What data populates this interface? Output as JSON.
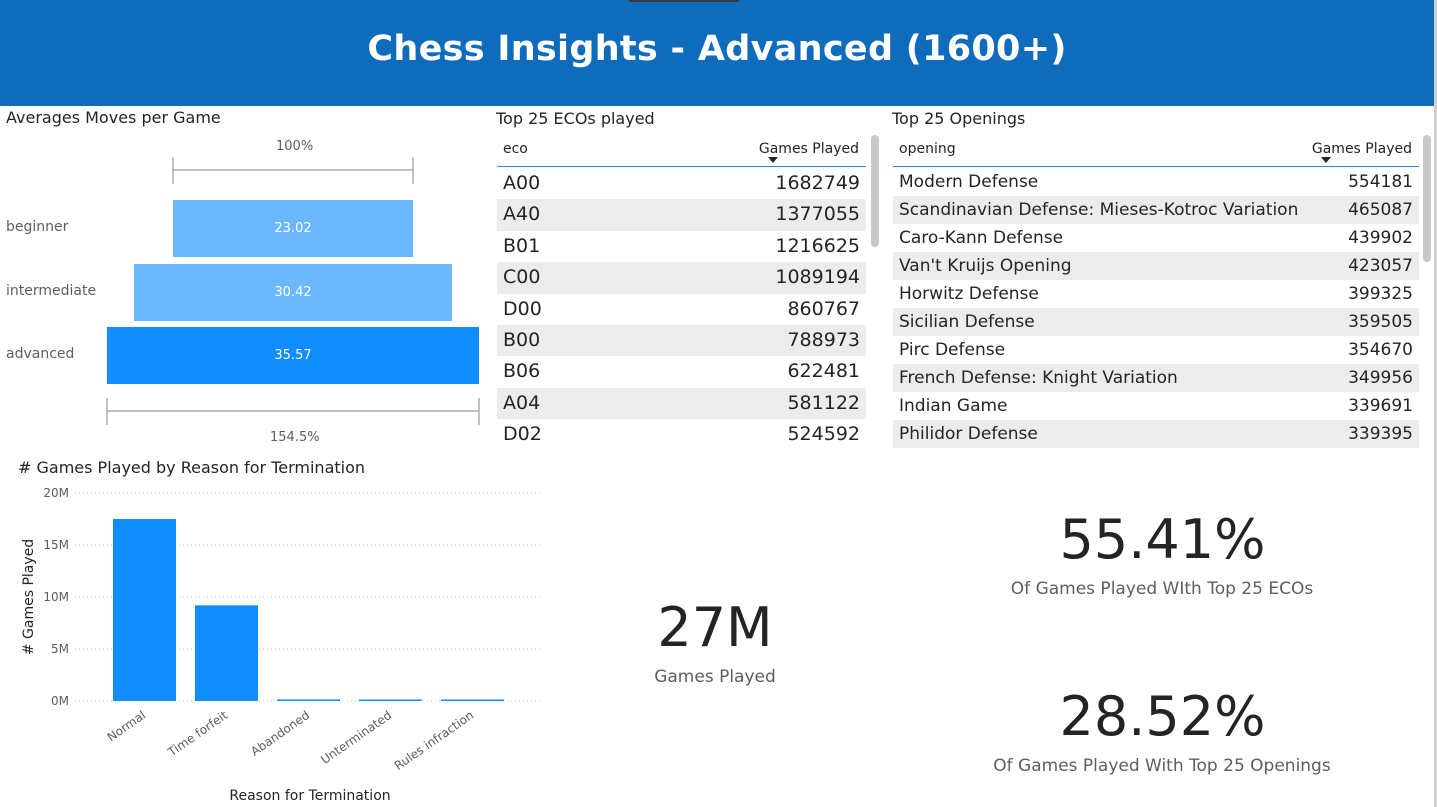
{
  "header": {
    "title": "Chess Insights - Advanced (1600+)"
  },
  "funnel": {
    "title": "Averages Moves per Game",
    "top_pct": "100%",
    "bottom_pct": "154.5%",
    "stages": [
      {
        "label": "beginner",
        "value": "23.02"
      },
      {
        "label": "intermediate",
        "value": "30.42"
      },
      {
        "label": "advanced",
        "value": "35.57"
      }
    ]
  },
  "eco_table": {
    "title": "Top 25 ECOs played",
    "col1": "eco",
    "col2": "Games Played",
    "rows": [
      {
        "eco": "A00",
        "games": "1682749"
      },
      {
        "eco": "A40",
        "games": "1377055"
      },
      {
        "eco": "B01",
        "games": "1216625"
      },
      {
        "eco": "C00",
        "games": "1089194"
      },
      {
        "eco": "D00",
        "games": "860767"
      },
      {
        "eco": "B00",
        "games": "788973"
      },
      {
        "eco": "B06",
        "games": "622481"
      },
      {
        "eco": "A04",
        "games": "581122"
      },
      {
        "eco": "D02",
        "games": "524592"
      }
    ]
  },
  "openings_table": {
    "title": "Top 25 Openings",
    "col1": "opening",
    "col2": "Games Played",
    "rows": [
      {
        "opening": "Modern Defense",
        "games": "554181"
      },
      {
        "opening": "Scandinavian Defense: Mieses-Kotroc Variation",
        "games": "465087"
      },
      {
        "opening": "Caro-Kann Defense",
        "games": "439902"
      },
      {
        "opening": "Van't Kruijs Opening",
        "games": "423057"
      },
      {
        "opening": "Horwitz Defense",
        "games": "399325"
      },
      {
        "opening": "Sicilian Defense",
        "games": "359505"
      },
      {
        "opening": "Pirc Defense",
        "games": "354670"
      },
      {
        "opening": "French Defense: Knight Variation",
        "games": "349956"
      },
      {
        "opening": "Indian Game",
        "games": "339691"
      },
      {
        "opening": "Philidor Defense",
        "games": "339395"
      }
    ]
  },
  "chart_data": {
    "type": "bar",
    "title": "# Games Played by Reason for Termination",
    "xlabel": "Reason for Termination",
    "ylabel": "# Games Played",
    "categories": [
      "Normal",
      "Time forfeit",
      "Abandoned",
      "Unterminated",
      "Rules infraction"
    ],
    "values": [
      17500000,
      9200000,
      150000,
      120000,
      100000
    ],
    "ylim": [
      0,
      20000000
    ],
    "yticks": [
      {
        "value": 0,
        "label": "0M"
      },
      {
        "value": 5000000,
        "label": "5M"
      },
      {
        "value": 10000000,
        "label": "10M"
      },
      {
        "value": 15000000,
        "label": "15M"
      },
      {
        "value": 20000000,
        "label": "20M"
      }
    ],
    "grid": true,
    "color": "#118dff"
  },
  "kpis": {
    "games": {
      "value": "27M",
      "label": "Games Played"
    },
    "eco_share": {
      "value": "55.41%",
      "label": "Of Games Played WIth Top 25 ECOs"
    },
    "opening_share": {
      "value": "28.52%",
      "label": "Of Games Played With Top 25 Openings"
    }
  },
  "colors": {
    "header": "#0f6cbd",
    "funnel_light": "#6cb8ff",
    "funnel_dark": "#118dff",
    "bar": "#118dff"
  }
}
